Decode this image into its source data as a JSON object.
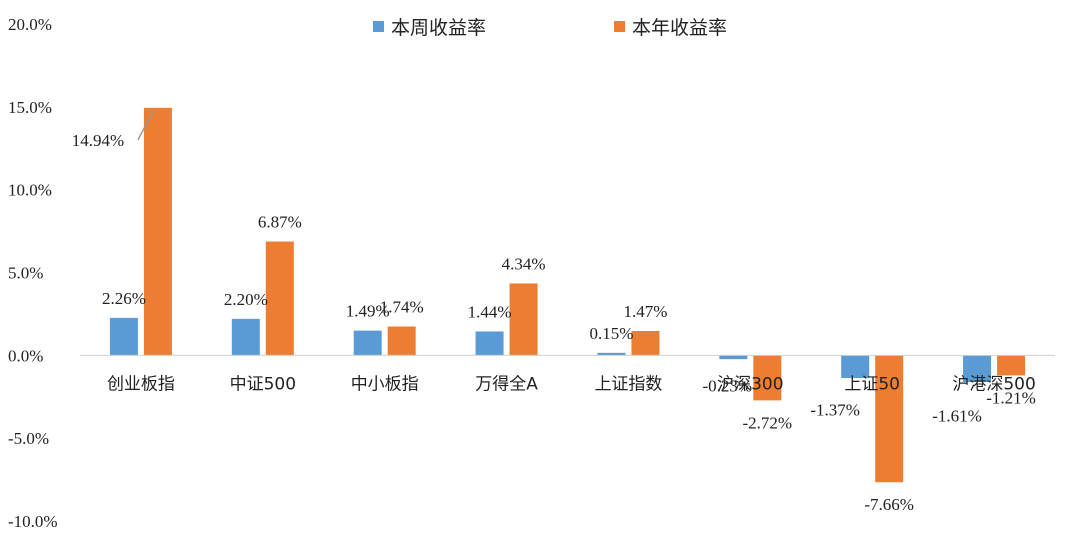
{
  "chart_data": {
    "type": "bar",
    "categories": [
      "创业板指",
      "中证500",
      "中小板指",
      "万得全A",
      "上证指数",
      "沪深300",
      "上证50",
      "沪港深500"
    ],
    "series": [
      {
        "name": "本周收益率",
        "color": "#5B9BD5",
        "values": [
          2.26,
          2.2,
          1.49,
          1.44,
          0.15,
          -0.23,
          -1.37,
          -1.61
        ],
        "labels": [
          "2.26%",
          "2.20%",
          "1.49%",
          "1.44%",
          "0.15%",
          "-0.23%",
          "-1.37%",
          "-1.61%"
        ]
      },
      {
        "name": "本年收益率",
        "color": "#ED7D31",
        "values": [
          14.94,
          6.87,
          1.74,
          4.34,
          1.47,
          -2.72,
          -7.66,
          -1.21
        ],
        "labels": [
          "14.94%",
          "6.87%",
          "1.74%",
          "4.34%",
          "1.47%",
          "-2.72%",
          "-7.66%",
          "-1.21%"
        ]
      }
    ],
    "y_ticks": [
      20,
      15,
      10,
      5,
      0,
      -5,
      -10
    ],
    "y_tick_labels": [
      "20.0%",
      "15.0%",
      "10.0%",
      "5.0%",
      "0.0%",
      "-5.0%",
      "-10.0%"
    ],
    "ylim": [
      -10,
      20
    ],
    "title": "",
    "xlabel": "",
    "ylabel": "",
    "grid": false,
    "legend_position": "top-center"
  }
}
